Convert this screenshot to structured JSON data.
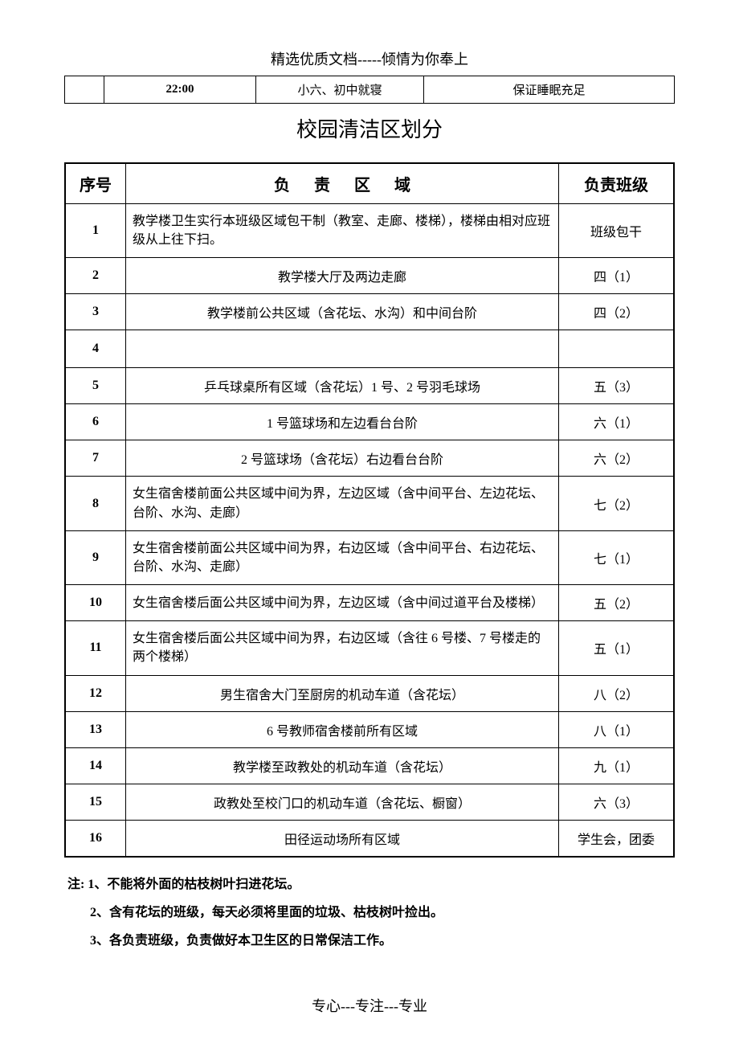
{
  "header": "精选优质文档-----倾情为你奉上",
  "top_row": {
    "c1": "",
    "c2": "22:00",
    "c3": "小六、初中就寝",
    "c4": "保证睡眠充足"
  },
  "section_title": "校园清洁区划分",
  "columns": {
    "num": "序号",
    "area": "负责区域",
    "cls": "负责班级"
  },
  "rows": [
    {
      "n": "1",
      "area": "教学楼卫生实行本班级区域包干制（教室、走廊、楼梯），楼梯由相对应班级从上往下扫。",
      "cls": "班级包干",
      "align": "left"
    },
    {
      "n": "2",
      "area": "教学楼大厅及两边走廊",
      "cls": "四（1）",
      "align": "center"
    },
    {
      "n": "3",
      "area": "教学楼前公共区域（含花坛、水沟）和中间台阶",
      "cls": "四（2）",
      "align": "center"
    },
    {
      "n": "4",
      "area": "",
      "cls": "",
      "align": "center",
      "empty": true
    },
    {
      "n": "5",
      "area": "乒乓球桌所有区域（含花坛）1 号、2 号羽毛球场",
      "cls": "五（3）",
      "align": "center"
    },
    {
      "n": "6",
      "area": "1 号篮球场和左边看台台阶",
      "cls": "六（1）",
      "align": "center"
    },
    {
      "n": "7",
      "area": "2 号篮球场（含花坛）右边看台台阶",
      "cls": "六（2）",
      "align": "center"
    },
    {
      "n": "8",
      "area": "女生宿舍楼前面公共区域中间为界，左边区域（含中间平台、左边花坛、台阶、水沟、走廊）",
      "cls": "七（2）",
      "align": "left"
    },
    {
      "n": "9",
      "area": "女生宿舍楼前面公共区域中间为界，右边区域（含中间平台、右边花坛、台阶、水沟、走廊）",
      "cls": "七（1）",
      "align": "left"
    },
    {
      "n": "10",
      "area": "女生宿舍楼后面公共区域中间为界，左边区域（含中间过道平台及楼梯）",
      "cls": "五（2）",
      "align": "left"
    },
    {
      "n": "11",
      "area": "女生宿舍楼后面公共区域中间为界，右边区域（含往 6 号楼、7 号楼走的两个楼梯）",
      "cls": "五（1）",
      "align": "left"
    },
    {
      "n": "12",
      "area": "男生宿舍大门至厨房的机动车道（含花坛）",
      "cls": "八（2）",
      "align": "center"
    },
    {
      "n": "13",
      "area": "6 号教师宿舍楼前所有区域",
      "cls": "八（1）",
      "align": "center"
    },
    {
      "n": "14",
      "area": "教学楼至政教处的机动车道（含花坛）",
      "cls": "九（1）",
      "align": "center"
    },
    {
      "n": "15",
      "area": "政教处至校门口的机动车道（含花坛、橱窗）",
      "cls": "六（3）",
      "align": "center"
    },
    {
      "n": "16",
      "area": "田径运动场所有区域",
      "cls": "学生会，团委",
      "align": "center"
    }
  ],
  "notes": [
    "注: 1、不能将外面的枯枝树叶扫进花坛。",
    "2、含有花坛的班级，每天必须将里面的垃圾、枯枝树叶捡出。",
    "3、各负责班级，负责做好本卫生区的日常保洁工作。"
  ],
  "footer": "专心---专注---专业"
}
